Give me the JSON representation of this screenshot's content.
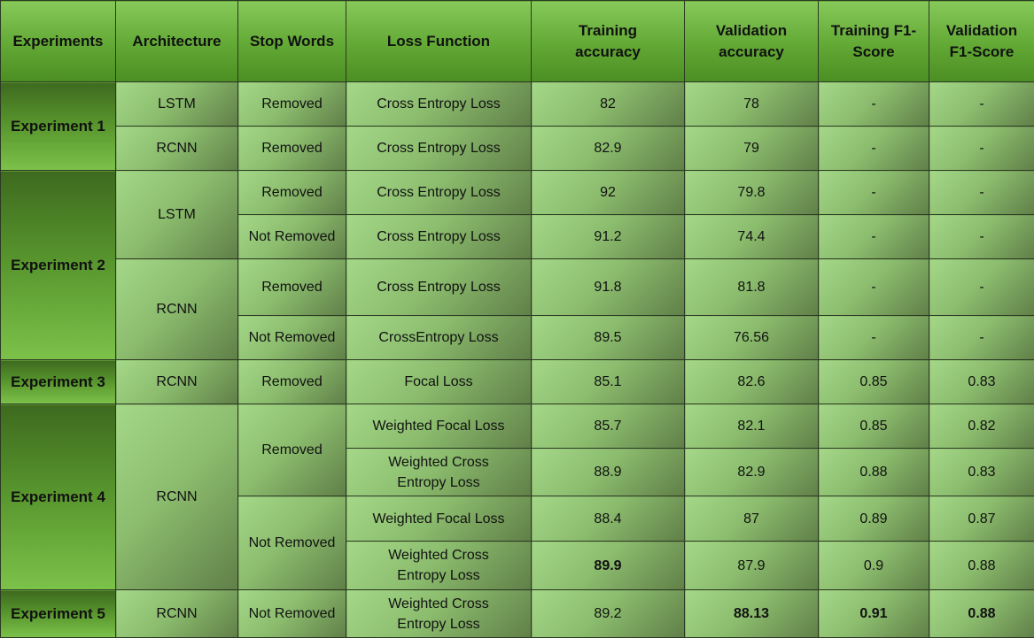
{
  "table": {
    "headers": {
      "experiments": "Experiments",
      "architecture": "Architecture",
      "stop_words": "Stop Words",
      "loss_function": "Loss Function",
      "training_accuracy_1": "Training",
      "training_accuracy_2": "accuracy",
      "validation_accuracy_1": "Validation",
      "validation_accuracy_2": "accuracy",
      "training_f1_1": "Training F1-",
      "training_f1_2": "Score",
      "validation_f1_1": "Validation",
      "validation_f1_2": "F1-Score"
    },
    "experiments": {
      "e1": "Experiment 1",
      "e2": "Experiment 2",
      "e3": "Experiment 3",
      "e4": "Experiment 4",
      "e5": "Experiment 5"
    },
    "architectures": {
      "e1_r1": "LSTM",
      "e1_r2": "RCNN",
      "e2_lstm": "LSTM",
      "e2_rcnn": "RCNN",
      "e3": "RCNN",
      "e4": "RCNN",
      "e5": "RCNN"
    },
    "stop_words": {
      "e1_r1": "Removed",
      "e1_r2": "Removed",
      "e2_r1": "Removed",
      "e2_r2": "Not Removed",
      "e2_r3": "Removed",
      "e2_r4": "Not Removed",
      "e3": "Removed",
      "e4_removed": "Removed",
      "e4_not_removed": "Not Removed",
      "e5": "Not Removed"
    },
    "rows": [
      {
        "loss": "Cross Entropy Loss",
        "loss_2": "",
        "train_acc": "82",
        "val_acc": "78",
        "train_f1": "-",
        "val_f1": "-"
      },
      {
        "loss": "Cross Entropy Loss",
        "loss_2": "",
        "train_acc": "82.9",
        "val_acc": "79",
        "train_f1": "-",
        "val_f1": "-"
      },
      {
        "loss": "Cross Entropy Loss",
        "loss_2": "",
        "train_acc": "92",
        "val_acc": "79.8",
        "train_f1": "-",
        "val_f1": "-"
      },
      {
        "loss": "Cross Entropy Loss",
        "loss_2": "",
        "train_acc": "91.2",
        "val_acc": "74.4",
        "train_f1": "-",
        "val_f1": "-"
      },
      {
        "loss": "Cross Entropy Loss",
        "loss_2": "",
        "train_acc": "91.8",
        "val_acc": "81.8",
        "train_f1": "-",
        "val_f1": "-"
      },
      {
        "loss": "CrossEntropy Loss",
        "loss_2": "",
        "train_acc": "89.5",
        "val_acc": "76.56",
        "train_f1": "-",
        "val_f1": "-"
      },
      {
        "loss": "Focal Loss",
        "loss_2": "",
        "train_acc": "85.1",
        "val_acc": "82.6",
        "train_f1": "0.85",
        "val_f1": "0.83"
      },
      {
        "loss": "Weighted Focal Loss",
        "loss_2": "",
        "train_acc": "85.7",
        "val_acc": "82.1",
        "train_f1": "0.85",
        "val_f1": "0.82"
      },
      {
        "loss": "Weighted Cross",
        "loss_2": "Entropy Loss",
        "train_acc": "88.9",
        "val_acc": "82.9",
        "train_f1": "0.88",
        "val_f1": "0.83"
      },
      {
        "loss": "Weighted Focal Loss",
        "loss_2": "",
        "train_acc": "88.4",
        "val_acc": "87",
        "train_f1": "0.89",
        "val_f1": "0.87"
      },
      {
        "loss": "Weighted Cross",
        "loss_2": "Entropy Loss",
        "train_acc": "89.9",
        "val_acc": "87.9",
        "train_f1": "0.9",
        "val_f1": "0.88"
      },
      {
        "loss": "Weighted Cross",
        "loss_2": "Entropy Loss",
        "train_acc": "89.2",
        "val_acc": "88.13",
        "train_f1": "0.91",
        "val_f1": "0.88"
      }
    ]
  }
}
